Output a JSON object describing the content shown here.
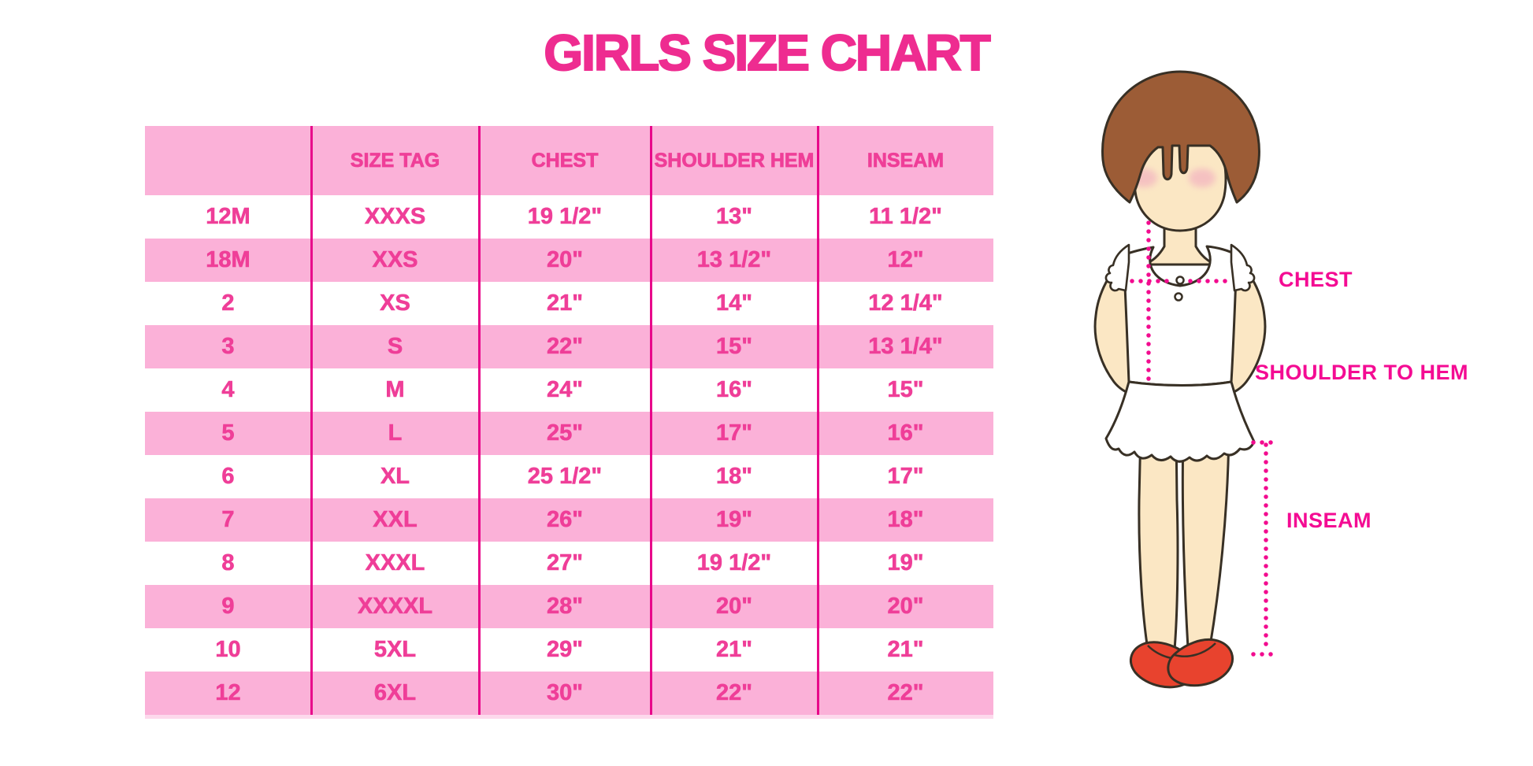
{
  "title": "GIRLS SIZE CHART",
  "chart_data": {
    "type": "table",
    "title": "GIRLS SIZE CHART",
    "columns": [
      "",
      "SIZE TAG",
      "CHEST",
      "SHOULDER HEM",
      "INSEAM"
    ],
    "rows": [
      [
        "12M",
        "XXXS",
        "19 1/2\"",
        "13\"",
        "11 1/2\""
      ],
      [
        "18M",
        "XXS",
        "20\"",
        "13 1/2\"",
        "12\""
      ],
      [
        "2",
        "XS",
        "21\"",
        "14\"",
        "12 1/4\""
      ],
      [
        "3",
        "S",
        "22\"",
        "15\"",
        "13 1/4\""
      ],
      [
        "4",
        "M",
        "24\"",
        "16\"",
        "15\""
      ],
      [
        "5",
        "L",
        "25\"",
        "17\"",
        "16\""
      ],
      [
        "6",
        "XL",
        "25 1/2\"",
        "18\"",
        "17\""
      ],
      [
        "7",
        "XXL",
        "26\"",
        "19\"",
        "18\""
      ],
      [
        "8",
        "XXXL",
        "27\"",
        "19 1/2\"",
        "19\""
      ],
      [
        "9",
        "XXXXL",
        "28\"",
        "20\"",
        "20\""
      ],
      [
        "10",
        "5XL",
        "29\"",
        "21\"",
        "21\""
      ],
      [
        "12",
        "6XL",
        "30\"",
        "22\"",
        "22\""
      ]
    ],
    "annotations": [
      "CHEST",
      "SHOULDER TO HEM",
      "INSEAM"
    ],
    "row_stripe_order": "white-first",
    "legend_position": "none",
    "grid": "vertical-dividers-only"
  },
  "diagram": {
    "chest_label": "CHEST",
    "shoulder_to_hem_label": "SHOULDER TO HEM",
    "inseam_label": "INSEAM"
  },
  "colors": {
    "title_pink": "#EE2C90",
    "row_pink": "#FBB1D8",
    "divider_magenta": "#E8078A",
    "cell_text_pink": "#EF3E98",
    "label_magenta": "#F40B93",
    "dotted_line_magenta": "#F20C8F",
    "hair_brown": "#9C5C36",
    "skin": "#FBE7C4",
    "shoe_red": "#E8432E"
  }
}
